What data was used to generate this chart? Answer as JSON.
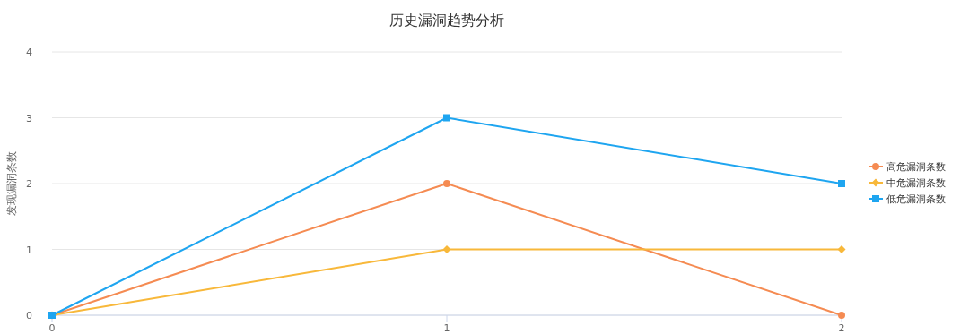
{
  "chart_data": {
    "type": "line",
    "title": "历史漏洞趋势分析",
    "ylabel": "发现漏洞条数",
    "x": [
      0,
      1,
      2
    ],
    "xlim": [
      0,
      2
    ],
    "xticks": [
      0,
      1,
      2
    ],
    "ylim": [
      0,
      4
    ],
    "yticks": [
      0,
      1,
      2,
      3,
      4
    ],
    "grid": "y",
    "legend": "right",
    "series": [
      {
        "name": "高危漏洞条数",
        "color": "#f58b52",
        "marker": "circle",
        "values": [
          0,
          2,
          0
        ]
      },
      {
        "name": "中危漏洞条数",
        "color": "#f8b83a",
        "marker": "diamond",
        "values": [
          0,
          1,
          1
        ]
      },
      {
        "name": "低危漏洞条数",
        "color": "#1ea5f0",
        "marker": "square",
        "values": [
          0,
          3,
          2
        ]
      }
    ]
  }
}
